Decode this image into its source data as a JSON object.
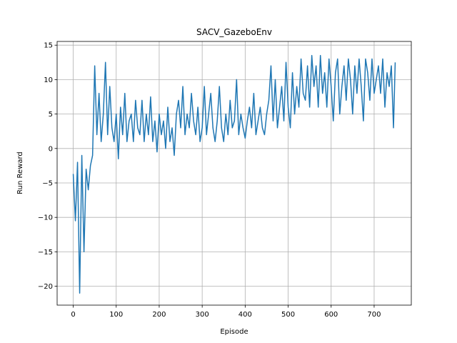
{
  "chart_data": {
    "type": "line",
    "title": "SACV_GazeboEnv",
    "xlabel": "Episode",
    "ylabel": "Run Reward",
    "x": [
      0,
      5,
      10,
      15,
      20,
      25,
      30,
      35,
      40,
      45,
      50,
      55,
      60,
      65,
      70,
      75,
      80,
      85,
      90,
      95,
      100,
      105,
      110,
      115,
      120,
      125,
      130,
      135,
      140,
      145,
      150,
      155,
      160,
      165,
      170,
      175,
      180,
      185,
      190,
      195,
      200,
      205,
      210,
      215,
      220,
      225,
      230,
      235,
      240,
      245,
      250,
      255,
      260,
      265,
      270,
      275,
      280,
      285,
      290,
      295,
      300,
      305,
      310,
      315,
      320,
      325,
      330,
      335,
      340,
      345,
      350,
      355,
      360,
      365,
      370,
      375,
      380,
      385,
      390,
      395,
      400,
      405,
      410,
      415,
      420,
      425,
      430,
      435,
      440,
      445,
      450,
      455,
      460,
      465,
      470,
      475,
      480,
      485,
      490,
      495,
      500,
      505,
      510,
      515,
      520,
      525,
      530,
      535,
      540,
      545,
      550,
      555,
      560,
      565,
      570,
      575,
      580,
      585,
      590,
      595,
      600,
      605,
      610,
      615,
      620,
      625,
      630,
      635,
      640,
      645,
      650,
      655,
      660,
      665,
      670,
      675,
      680,
      685,
      690,
      695,
      700,
      705,
      710,
      715,
      720,
      725,
      730,
      735,
      740,
      745,
      749
    ],
    "series": [
      {
        "name": "Run Reward",
        "color": "#1f77b4",
        "values": [
          -3.7,
          -10.5,
          -2,
          -21,
          -1,
          -15,
          -3,
          -6,
          -2.5,
          -1,
          12,
          2,
          8,
          1,
          5,
          12.5,
          2,
          9,
          3,
          1,
          5,
          -1.5,
          6,
          2,
          8,
          1,
          4,
          5,
          1,
          7,
          3,
          2,
          7,
          1,
          5,
          2,
          7.5,
          1,
          4,
          -0.5,
          5,
          2,
          4,
          0,
          6,
          1,
          3,
          -1,
          5,
          7,
          3,
          9,
          2,
          5,
          3,
          8,
          4,
          2,
          6,
          1,
          3,
          9,
          2,
          5,
          8,
          3,
          1,
          4,
          9,
          3,
          1,
          5,
          2,
          7,
          3,
          4,
          10,
          2,
          5,
          3,
          1.5,
          4,
          6,
          3,
          8,
          2,
          4,
          6,
          3,
          2,
          5,
          7,
          12,
          4,
          10,
          3,
          6,
          9,
          4,
          12.5,
          6,
          3,
          11,
          5,
          9,
          6,
          13,
          8,
          7,
          12,
          6,
          13.5,
          9,
          12,
          6,
          13.5,
          8,
          11,
          6,
          13,
          9,
          4,
          11,
          13,
          5,
          9,
          12,
          7,
          13,
          10,
          5,
          12,
          8,
          13,
          9,
          4,
          13,
          11,
          7,
          13,
          8,
          10,
          12,
          8,
          13,
          6,
          11,
          9,
          12,
          3,
          12.5
        ]
      }
    ],
    "xlim": [
      -37.45,
      786.45
    ],
    "ylim": [
      -22.74,
      15.54
    ],
    "xticks": [
      0,
      100,
      200,
      300,
      400,
      500,
      600,
      700
    ],
    "yticks": [
      {
        "value": -20,
        "label": "−20"
      },
      {
        "value": -15,
        "label": "−15"
      },
      {
        "value": -10,
        "label": "−10"
      },
      {
        "value": -5,
        "label": "−5"
      },
      0,
      5,
      10,
      15
    ],
    "grid": true
  }
}
